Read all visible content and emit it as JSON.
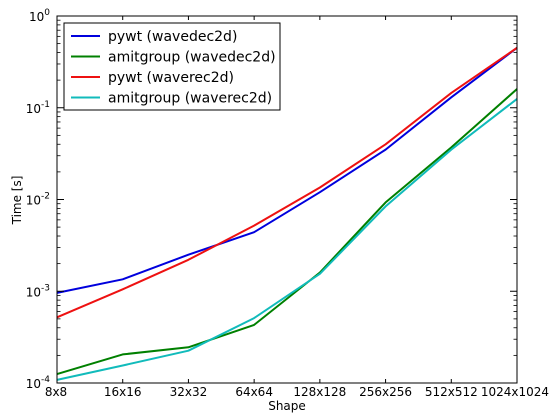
{
  "chart_data": {
    "type": "line",
    "xlabel": "Shape",
    "ylabel": "Time [s]",
    "y_scale": "log",
    "ylim": [
      0.0001,
      1
    ],
    "grid": false,
    "legend_position": "top-left",
    "categories": [
      "8x8",
      "16x16",
      "32x32",
      "64x64",
      "128x128",
      "256x256",
      "512x512",
      "1024x1024"
    ],
    "y_ticks": [
      {
        "value": 0.0001,
        "base": "10",
        "exp": "-4"
      },
      {
        "value": 0.001,
        "base": "10",
        "exp": "-3"
      },
      {
        "value": 0.01,
        "base": "10",
        "exp": "-2"
      },
      {
        "value": 0.1,
        "base": "10",
        "exp": "-1"
      },
      {
        "value": 1,
        "base": "10",
        "exp": "0"
      }
    ],
    "series": [
      {
        "name": "pywt (wavedec2d)",
        "color": "#0000dd",
        "values": [
          0.00096,
          0.00135,
          0.0025,
          0.0044,
          0.012,
          0.035,
          0.13,
          0.45
        ]
      },
      {
        "name": "amitgroup (wavedec2d)",
        "color": "#008000",
        "values": [
          0.000125,
          0.000205,
          0.000245,
          0.00043,
          0.0016,
          0.0093,
          0.037,
          0.16
        ]
      },
      {
        "name": "pywt (waverec2d)",
        "color": "#ee1111",
        "values": [
          0.00052,
          0.00105,
          0.0022,
          0.0052,
          0.0135,
          0.04,
          0.145,
          0.45
        ]
      },
      {
        "name": "amitgroup (waverec2d)",
        "color": "#11bbbb",
        "values": [
          0.000108,
          0.000155,
          0.000225,
          0.00051,
          0.00155,
          0.0084,
          0.035,
          0.125
        ]
      }
    ]
  }
}
